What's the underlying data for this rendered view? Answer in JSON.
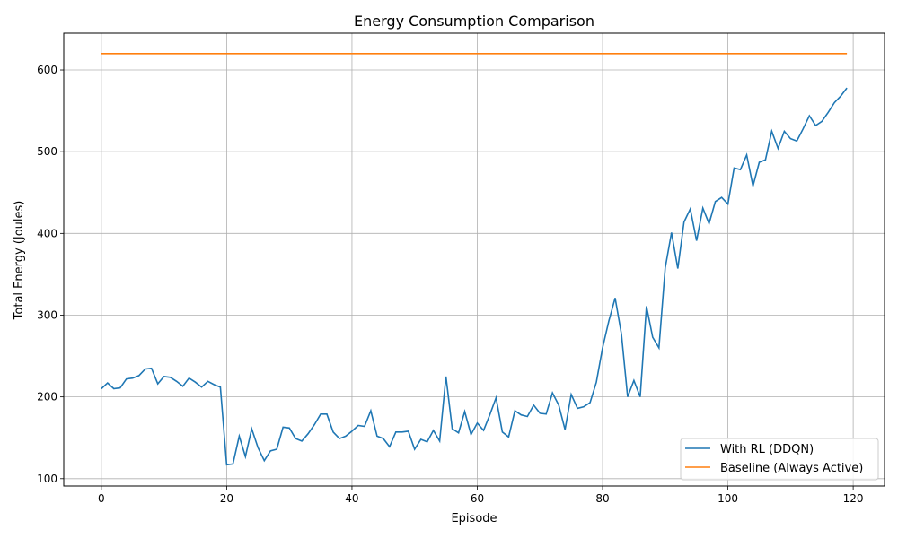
{
  "chart_data": {
    "type": "line",
    "title": "Energy Consumption Comparison",
    "xlabel": "Episode",
    "ylabel": "Total Energy (Joules)",
    "xlim": [
      -6,
      125
    ],
    "ylim": [
      91,
      645
    ],
    "xticks": [
      0,
      20,
      40,
      60,
      80,
      100,
      120
    ],
    "yticks": [
      100,
      200,
      300,
      400,
      500,
      600
    ],
    "grid": true,
    "legend_position": "lower-right",
    "series": [
      {
        "name": "With RL (DDQN)",
        "color": "#1f77b4",
        "x_start": 0,
        "values": [
          210,
          217,
          210,
          211,
          222,
          223,
          226,
          234,
          235,
          216,
          225,
          224,
          219,
          213,
          223,
          218,
          212,
          219,
          215,
          212,
          117,
          118,
          152,
          127,
          161,
          138,
          122,
          134,
          136,
          163,
          162,
          149,
          146,
          155,
          166,
          179,
          179,
          157,
          149,
          152,
          158,
          165,
          164,
          183,
          152,
          149,
          139,
          157,
          157,
          158,
          136,
          148,
          145,
          159,
          146,
          225,
          161,
          156,
          182,
          154,
          168,
          159,
          178,
          199,
          157,
          151,
          183,
          178,
          176,
          190,
          180,
          179,
          205,
          190,
          160,
          203,
          186,
          188,
          193,
          218,
          260,
          293,
          321,
          277,
          200,
          220,
          200,
          311,
          273,
          260,
          358,
          401,
          357,
          414,
          430,
          391,
          431,
          412,
          439,
          444,
          436,
          480,
          478,
          496,
          458,
          487,
          490,
          525,
          504,
          525,
          516,
          513,
          528,
          544,
          532,
          537,
          548,
          560,
          568,
          578
        ]
      },
      {
        "name": "Baseline (Always Active)",
        "color": "#ff7f0e",
        "x_start": 0,
        "values": [
          620,
          620
        ]
      }
    ]
  }
}
